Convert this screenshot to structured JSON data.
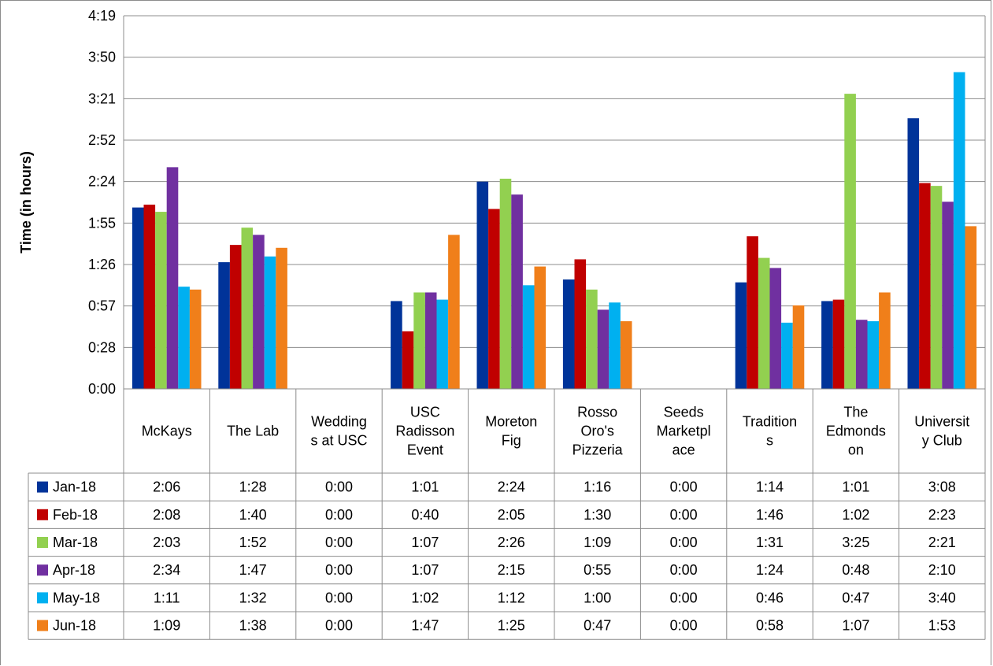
{
  "chart_data": {
    "type": "bar",
    "title": "",
    "xlabel": "",
    "ylabel": "Time (in hours)",
    "yticks": [
      "0:00",
      "0:28",
      "0:57",
      "1:26",
      "1:55",
      "2:24",
      "2:52",
      "3:21",
      "3:50",
      "4:19"
    ],
    "ylim_minutes": [
      0,
      259.2
    ],
    "grid": true,
    "legend": "data-table",
    "categories": [
      [
        "McKays"
      ],
      [
        "The Lab"
      ],
      [
        "Wedding",
        "s at USC"
      ],
      [
        "USC",
        "Radisson",
        "Event"
      ],
      [
        "Moreton",
        "Fig"
      ],
      [
        "Rosso",
        "Oro's",
        "Pizzeria"
      ],
      [
        "Seeds",
        "Marketpl",
        "ace"
      ],
      [
        "Tradition",
        "s"
      ],
      [
        "The",
        "Edmonds",
        "on"
      ],
      [
        "Universit",
        "y Club"
      ]
    ],
    "series": [
      {
        "name": "Jan-18",
        "color": "#003399",
        "values": [
          "2:06",
          "1:28",
          "0:00",
          "1:01",
          "2:24",
          "1:16",
          "0:00",
          "1:14",
          "1:01",
          "3:08"
        ]
      },
      {
        "name": "Feb-18",
        "color": "#c00000",
        "values": [
          "2:08",
          "1:40",
          "0:00",
          "0:40",
          "2:05",
          "1:30",
          "0:00",
          "1:46",
          "1:02",
          "2:23"
        ]
      },
      {
        "name": "Mar-18",
        "color": "#92d050",
        "values": [
          "2:03",
          "1:52",
          "0:00",
          "1:07",
          "2:26",
          "1:09",
          "0:00",
          "1:31",
          "3:25",
          "2:21"
        ]
      },
      {
        "name": "Apr-18",
        "color": "#7030a0",
        "values": [
          "2:34",
          "1:47",
          "0:00",
          "1:07",
          "2:15",
          "0:55",
          "0:00",
          "1:24",
          "0:48",
          "2:10"
        ]
      },
      {
        "name": "May-18",
        "color": "#00b0f0",
        "values": [
          "1:11",
          "1:32",
          "0:00",
          "1:02",
          "1:12",
          "1:00",
          "0:00",
          "0:46",
          "0:47",
          "3:40"
        ]
      },
      {
        "name": "Jun-18",
        "color": "#f07f1a",
        "values": [
          "1:09",
          "1:38",
          "0:00",
          "1:47",
          "1:25",
          "0:47",
          "0:00",
          "0:58",
          "1:07",
          "1:53"
        ]
      }
    ]
  }
}
